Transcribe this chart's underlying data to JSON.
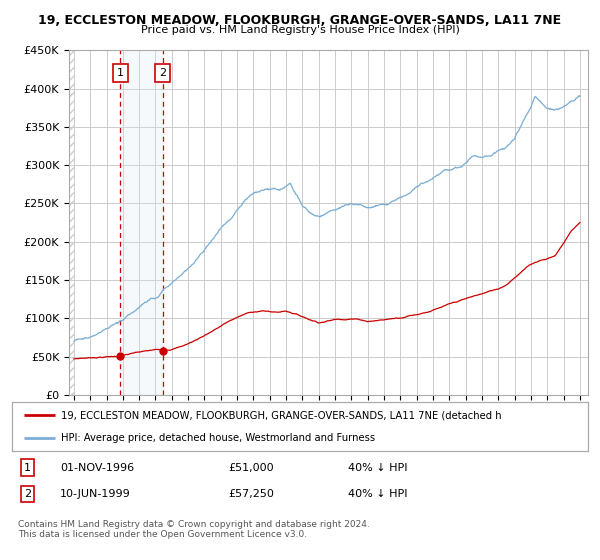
{
  "title_line1": "19, ECCLESTON MEADOW, FLOOKBURGH, GRANGE-OVER-SANDS, LA11 7NE",
  "title_line2": "Price paid vs. HM Land Registry's House Price Index (HPI)",
  "ylim": [
    0,
    450000
  ],
  "yticks": [
    0,
    50000,
    100000,
    150000,
    200000,
    250000,
    300000,
    350000,
    400000,
    450000
  ],
  "ytick_labels": [
    "£0",
    "£50K",
    "£100K",
    "£150K",
    "£200K",
    "£250K",
    "£300K",
    "£350K",
    "£400K",
    "£450K"
  ],
  "xlim_start": 1993.7,
  "xlim_end": 2025.5,
  "hpi_color": "#7aadd4",
  "price_color": "#cc0000",
  "grid_color": "#cccccc",
  "hatch_color": "#bbbbbb",
  "shade_color": "#dce8f5",
  "transaction1_date": 1996.833,
  "transaction1_price": 51000,
  "transaction2_date": 1999.44,
  "transaction2_price": 57250,
  "legend_entry1": "19, ECCLESTON MEADOW, FLOOKBURGH, GRANGE-OVER-SANDS, LA11 7NE (detached h",
  "legend_entry2": "HPI: Average price, detached house, Westmorland and Furness",
  "table_row1": [
    "1",
    "01-NOV-1996",
    "£51,000",
    "40% ↓ HPI"
  ],
  "table_row2": [
    "2",
    "10-JUN-1999",
    "£57,250",
    "40% ↓ HPI"
  ],
  "footnote": "Contains HM Land Registry data © Crown copyright and database right 2024.\nThis data is licensed under the Open Government Licence v3.0.",
  "xticks": [
    1994,
    1995,
    1996,
    1997,
    1998,
    1999,
    2000,
    2001,
    2002,
    2003,
    2004,
    2005,
    2006,
    2007,
    2008,
    2009,
    2010,
    2011,
    2012,
    2013,
    2014,
    2015,
    2016,
    2017,
    2018,
    2019,
    2020,
    2021,
    2022,
    2023,
    2024,
    2025
  ],
  "hpi_years": [
    1994,
    1994.5,
    1995,
    1995.5,
    1996,
    1996.5,
    1997,
    1997.5,
    1998,
    1998.5,
    1999,
    1999.5,
    2000,
    2000.5,
    2001,
    2001.5,
    2002,
    2002.5,
    2003,
    2003.5,
    2004,
    2004.5,
    2005,
    2005.5,
    2006,
    2006.5,
    2007,
    2007.25,
    2007.5,
    2007.75,
    2008,
    2008.5,
    2009,
    2009.5,
    2010,
    2010.5,
    2011,
    2011.5,
    2012,
    2012.5,
    2013,
    2013.5,
    2014,
    2014.5,
    2015,
    2015.5,
    2016,
    2016.5,
    2017,
    2017.5,
    2018,
    2018.25,
    2018.5,
    2018.75,
    2019,
    2019.5,
    2020,
    2020.5,
    2021,
    2021.5,
    2022,
    2022.25,
    2022.5,
    2022.75,
    2023,
    2023.5,
    2024,
    2024.5,
    2025
  ],
  "hpi_values": [
    70000,
    73000,
    76000,
    80000,
    84000,
    89000,
    95000,
    102000,
    110000,
    118000,
    125000,
    133000,
    141000,
    150000,
    160000,
    172000,
    185000,
    200000,
    215000,
    228000,
    240000,
    252000,
    262000,
    268000,
    267000,
    265000,
    270000,
    275000,
    265000,
    255000,
    245000,
    235000,
    228000,
    232000,
    238000,
    242000,
    245000,
    243000,
    240000,
    242000,
    244000,
    248000,
    254000,
    260000,
    266000,
    272000,
    278000,
    284000,
    290000,
    296000,
    302000,
    308000,
    312000,
    310000,
    308000,
    312000,
    318000,
    322000,
    335000,
    358000,
    378000,
    390000,
    385000,
    380000,
    376000,
    375000,
    378000,
    385000,
    390000
  ],
  "price_years": [
    1994,
    1994.5,
    1995,
    1995.5,
    1996,
    1996.5,
    1996.833,
    1997,
    1997.5,
    1998,
    1998.5,
    1999,
    1999.44,
    1999.5,
    2000,
    2000.5,
    2001,
    2001.5,
    2002,
    2002.5,
    2003,
    2003.5,
    2004,
    2004.5,
    2005,
    2005.5,
    2006,
    2006.5,
    2007,
    2007.5,
    2008,
    2008.5,
    2009,
    2009.5,
    2010,
    2010.5,
    2011,
    2011.5,
    2012,
    2012.5,
    2013,
    2013.5,
    2014,
    2014.5,
    2015,
    2015.5,
    2016,
    2016.5,
    2017,
    2017.5,
    2018,
    2018.5,
    2019,
    2019.5,
    2020,
    2020.5,
    2021,
    2021.5,
    2022,
    2022.5,
    2023,
    2023.5,
    2024,
    2024.5,
    2025
  ],
  "price_values": [
    47000,
    48000,
    48500,
    49500,
    50000,
    50500,
    51000,
    52000,
    53500,
    55000,
    56000,
    57000,
    57250,
    57500,
    59000,
    62000,
    66000,
    71000,
    77000,
    83000,
    89000,
    95000,
    100000,
    104000,
    107000,
    108000,
    107000,
    106000,
    108000,
    105000,
    101000,
    97000,
    94000,
    96000,
    98000,
    99000,
    100000,
    99000,
    97000,
    98000,
    99000,
    100500,
    102000,
    105000,
    107000,
    110000,
    113000,
    116000,
    119000,
    122000,
    125000,
    128000,
    131000,
    134000,
    137000,
    143000,
    153000,
    162000,
    170000,
    175000,
    178000,
    182000,
    198000,
    215000,
    225000
  ]
}
